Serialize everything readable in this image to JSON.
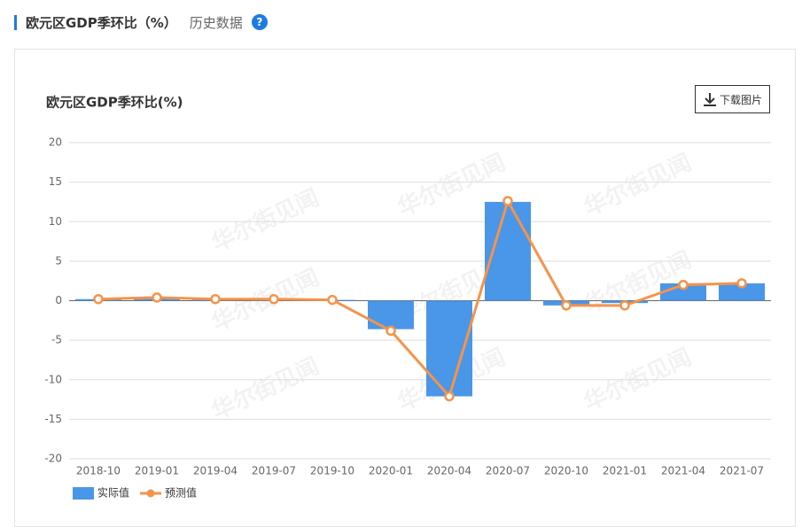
{
  "header": {
    "title": "欧元区GDP季环比（%）",
    "link": "历史数据",
    "help": "?"
  },
  "download": "下载图片",
  "watermark": "华尔街见闻",
  "chart_data": {
    "type": "bar",
    "title": "欧元区GDP季环比(%)",
    "categories": [
      "2018-10",
      "2019-01",
      "2019-04",
      "2019-07",
      "2019-10",
      "2020-01",
      "2020-04",
      "2020-07",
      "2020-10",
      "2021-01",
      "2021-04",
      "2021-07"
    ],
    "series": [
      {
        "name": "实际值",
        "type": "bar",
        "color": "#4a96e8",
        "values": [
          0.2,
          0.4,
          0.2,
          0.3,
          0.1,
          -3.6,
          -12.1,
          12.5,
          -0.6,
          -0.3,
          2.2,
          2.2
        ]
      },
      {
        "name": "预测值",
        "type": "line",
        "color": "#f5934a",
        "values": [
          0.2,
          0.4,
          0.2,
          0.2,
          0.1,
          -3.8,
          -12.1,
          12.6,
          -0.6,
          -0.6,
          2.0,
          2.2
        ]
      }
    ],
    "ylim": [
      -20,
      20
    ],
    "yticks": [
      20,
      15,
      10,
      5,
      0,
      -5,
      -10,
      -15,
      -20
    ],
    "grid": true
  }
}
